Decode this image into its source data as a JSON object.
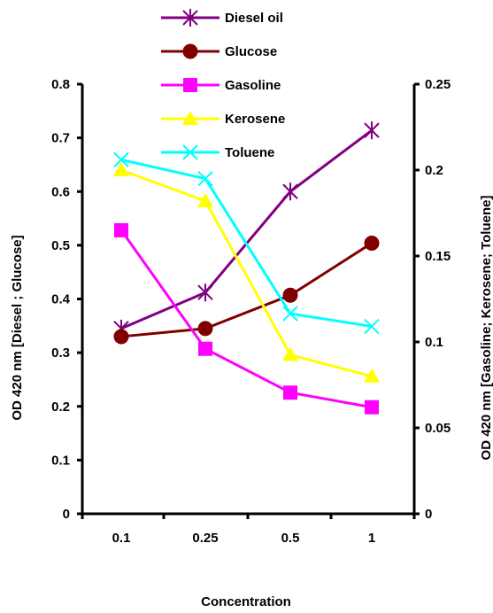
{
  "chart_data": {
    "type": "line",
    "categories": [
      "0.1",
      "0.25",
      "0.5",
      "1"
    ],
    "xlabel": "Concentration",
    "ylabel_left": "OD 420 nm [Diesel ; Glucose]",
    "ylabel_right": "OD 420 nm [Gasoline; Kerosene; Toluene]",
    "ylim_left": [
      0,
      0.8
    ],
    "ylim_right": [
      0,
      0.25
    ],
    "yticks_left": [
      "0",
      "0.1",
      "0.2",
      "0.3",
      "0.4",
      "0.5",
      "0.6",
      "0.7",
      "0.8"
    ],
    "yticks_right": [
      "0",
      "0.05",
      "0.1",
      "0.15",
      "0.2",
      "0.25"
    ],
    "grid": false,
    "legend_position": "top-center",
    "series": [
      {
        "name": "Diesel oil",
        "axis": "left",
        "color": "#800080",
        "marker": "star",
        "values": [
          0.345,
          0.412,
          0.6,
          0.714
        ]
      },
      {
        "name": "Glucose",
        "axis": "left",
        "color": "#800000",
        "marker": "circle",
        "values": [
          0.33,
          0.345,
          0.407,
          0.504
        ]
      },
      {
        "name": "Gasoline",
        "axis": "right",
        "color": "#ff00ff",
        "marker": "square",
        "values": [
          0.165,
          0.096,
          0.0705,
          0.062
        ]
      },
      {
        "name": "Kerosene",
        "axis": "right",
        "color": "#ffff00",
        "marker": "triangle",
        "values": [
          0.2,
          0.182,
          0.0925,
          0.08
        ]
      },
      {
        "name": "Toluene",
        "axis": "right",
        "color": "#00ffff",
        "marker": "x",
        "values": [
          0.206,
          0.195,
          0.1165,
          0.109
        ]
      }
    ]
  }
}
